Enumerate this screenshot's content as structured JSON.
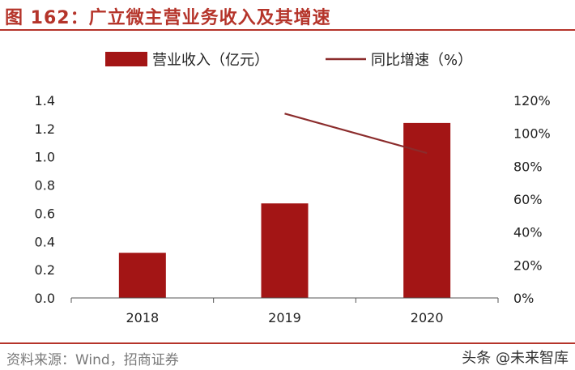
{
  "header": {
    "title": "图 162：广立微主营业务收入及其增速"
  },
  "footer": {
    "source": "资料来源：Wind，招商证券",
    "watermark": "头条 @未来智库"
  },
  "colors": {
    "bar": "#a31515",
    "line": "#8b2c2c",
    "accent": "#b5342a"
  },
  "chart_data": {
    "type": "bar",
    "title": "",
    "categories": [
      "2018",
      "2019",
      "2020"
    ],
    "series": [
      {
        "name": "营业收入（亿元）",
        "type": "bar",
        "axis": "left",
        "values": [
          0.32,
          0.67,
          1.24
        ]
      },
      {
        "name": "同比增速（%）",
        "type": "line",
        "axis": "right",
        "values": [
          null,
          112,
          88
        ]
      }
    ],
    "y_left": {
      "ylim": [
        0,
        1.4
      ],
      "ticks": [
        "0.0",
        "0.2",
        "0.4",
        "0.6",
        "0.8",
        "1.0",
        "1.2",
        "1.4"
      ]
    },
    "y_right": {
      "ylim": [
        0,
        120
      ],
      "ticks": [
        "0%",
        "20%",
        "40%",
        "60%",
        "80%",
        "100%",
        "120%"
      ]
    },
    "legend_position": "top",
    "grid": false
  }
}
